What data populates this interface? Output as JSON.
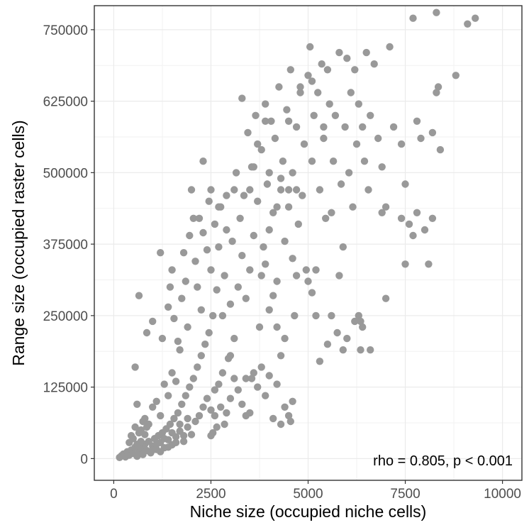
{
  "chart_data": {
    "type": "scatter",
    "xlabel": "Niche size (occupied niche cells)",
    "ylabel": "Range size (occupied raster cells)",
    "xlim": [
      -500,
      10500
    ],
    "ylim": [
      -38000,
      792000
    ],
    "x_ticks": [
      0,
      2500,
      5000,
      7500,
      10000
    ],
    "y_ticks": [
      0,
      125000,
      250000,
      375000,
      500000,
      625000,
      750000
    ],
    "x_tick_labels": [
      "0",
      "2500",
      "5000",
      "7500",
      "10000"
    ],
    "y_tick_labels": [
      "0",
      "125000",
      "250000",
      "375000",
      "500000",
      "625000",
      "750000"
    ],
    "grid": true,
    "point_color": "#999999",
    "annotation": "rho = 0.805, p < 0.001",
    "points": [
      [
        150,
        2000
      ],
      [
        200,
        5000
      ],
      [
        250,
        8000
      ],
      [
        300,
        3000
      ],
      [
        350,
        12000
      ],
      [
        400,
        6000
      ],
      [
        450,
        15000
      ],
      [
        500,
        9000
      ],
      [
        550,
        20000
      ],
      [
        600,
        4000
      ],
      [
        650,
        11000
      ],
      [
        700,
        18000
      ],
      [
        750,
        7000
      ],
      [
        800,
        25000
      ],
      [
        850,
        14000
      ],
      [
        900,
        30000
      ],
      [
        950,
        10000
      ],
      [
        1000,
        22000
      ],
      [
        1050,
        35000
      ],
      [
        1100,
        16000
      ],
      [
        1150,
        40000
      ],
      [
        1200,
        28000
      ],
      [
        1250,
        45000
      ],
      [
        1300,
        19000
      ],
      [
        1350,
        52000
      ],
      [
        1400,
        33000
      ],
      [
        1450,
        60000
      ],
      [
        1500,
        24000
      ],
      [
        1550,
        70000
      ],
      [
        1600,
        38000
      ],
      [
        1650,
        80000
      ],
      [
        1700,
        48000
      ],
      [
        1750,
        95000
      ],
      [
        1800,
        30000
      ],
      [
        1850,
        110000
      ],
      [
        1900,
        55000
      ],
      [
        1950,
        125000
      ],
      [
        2000,
        42000
      ],
      [
        2050,
        140000
      ],
      [
        2100,
        65000
      ],
      [
        2150,
        160000
      ],
      [
        2200,
        75000
      ],
      [
        2250,
        180000
      ],
      [
        2300,
        90000
      ],
      [
        2350,
        200000
      ],
      [
        2400,
        105000
      ],
      [
        2450,
        220000
      ],
      [
        2500,
        85000
      ],
      [
        2550,
        250000
      ],
      [
        2600,
        120000
      ],
      [
        700,
        50000
      ],
      [
        800,
        70000
      ],
      [
        900,
        60000
      ],
      [
        1000,
        90000
      ],
      [
        1100,
        100000
      ],
      [
        1200,
        75000
      ],
      [
        1300,
        130000
      ],
      [
        1400,
        110000
      ],
      [
        1500,
        150000
      ],
      [
        1600,
        135000
      ],
      [
        600,
        95000
      ],
      [
        550,
        160000
      ],
      [
        650,
        285000
      ],
      [
        850,
        220000
      ],
      [
        1000,
        240000
      ],
      [
        1200,
        360000
      ],
      [
        1250,
        210000
      ],
      [
        1400,
        265000
      ],
      [
        1450,
        300000
      ],
      [
        1500,
        330000
      ],
      [
        1550,
        245000
      ],
      [
        1650,
        205000
      ],
      [
        1700,
        190000
      ],
      [
        1750,
        280000
      ],
      [
        1800,
        360000
      ],
      [
        1850,
        310000
      ],
      [
        1900,
        230000
      ],
      [
        1950,
        390000
      ],
      [
        2000,
        470000
      ],
      [
        2050,
        420000
      ],
      [
        2100,
        345000
      ],
      [
        2150,
        300000
      ],
      [
        2200,
        420000
      ],
      [
        2250,
        260000
      ],
      [
        2300,
        395000
      ],
      [
        2400,
        365000
      ],
      [
        2450,
        450000
      ],
      [
        2500,
        330000
      ],
      [
        2600,
        410000
      ],
      [
        2650,
        295000
      ],
      [
        2700,
        370000
      ],
      [
        2750,
        440000
      ],
      [
        2800,
        250000
      ],
      [
        2850,
        320000
      ],
      [
        2900,
        400000
      ],
      [
        2950,
        175000
      ],
      [
        3000,
        270000
      ],
      [
        3050,
        380000
      ],
      [
        3100,
        210000
      ],
      [
        3150,
        500000
      ],
      [
        3200,
        300000
      ],
      [
        3250,
        420000
      ],
      [
        3300,
        355000
      ],
      [
        3350,
        460000
      ],
      [
        3400,
        280000
      ],
      [
        3450,
        570000
      ],
      [
        3500,
        330000
      ],
      [
        3550,
        510000
      ],
      [
        3600,
        390000
      ],
      [
        3650,
        600000
      ],
      [
        3700,
        450000
      ],
      [
        3750,
        230000
      ],
      [
        3800,
        540000
      ],
      [
        3850,
        370000
      ],
      [
        3900,
        620000
      ],
      [
        3950,
        480000
      ],
      [
        4000,
        400000
      ],
      [
        4050,
        590000
      ],
      [
        4100,
        430000
      ],
      [
        4150,
        560000
      ],
      [
        4200,
        310000
      ],
      [
        4250,
        650000
      ],
      [
        4300,
        470000
      ],
      [
        4350,
        520000
      ],
      [
        4400,
        380000
      ],
      [
        4450,
        610000
      ],
      [
        4500,
        440000
      ],
      [
        4550,
        680000
      ],
      [
        4600,
        500000
      ],
      [
        4650,
        250000
      ],
      [
        4700,
        580000
      ],
      [
        4750,
        410000
      ],
      [
        4800,
        640000
      ],
      [
        4850,
        460000
      ],
      [
        4900,
        550000
      ],
      [
        4950,
        330000
      ],
      [
        5000,
        670000
      ],
      [
        5050,
        720000
      ],
      [
        5100,
        520000
      ],
      [
        5150,
        600000
      ],
      [
        5200,
        250000
      ],
      [
        5250,
        640000
      ],
      [
        5300,
        470000
      ],
      [
        5350,
        690000
      ],
      [
        5400,
        560000
      ],
      [
        5450,
        420000
      ],
      [
        5500,
        680000
      ],
      [
        5550,
        620000
      ],
      [
        5600,
        430000
      ],
      [
        5650,
        520000
      ],
      [
        5700,
        600000
      ],
      [
        5750,
        220000
      ],
      [
        5800,
        710000
      ],
      [
        5850,
        480000
      ],
      [
        5900,
        370000
      ],
      [
        5950,
        580000
      ],
      [
        6000,
        700000
      ],
      [
        6050,
        500000
      ],
      [
        6100,
        640000
      ],
      [
        6150,
        440000
      ],
      [
        6200,
        680000
      ],
      [
        6250,
        550000
      ],
      [
        6300,
        620000
      ],
      [
        6350,
        190000
      ],
      [
        6400,
        580000
      ],
      [
        6450,
        520000
      ],
      [
        6500,
        710000
      ],
      [
        6550,
        470000
      ],
      [
        6600,
        600000
      ],
      [
        6700,
        690000
      ],
      [
        6800,
        560000
      ],
      [
        6900,
        510000
      ],
      [
        7000,
        440000
      ],
      [
        7100,
        720000
      ],
      [
        7200,
        580000
      ],
      [
        7400,
        420000
      ],
      [
        7500,
        480000
      ],
      [
        7600,
        410000
      ],
      [
        7700,
        770000
      ],
      [
        7800,
        590000
      ],
      [
        7900,
        560000
      ],
      [
        8000,
        400000
      ],
      [
        8100,
        340000
      ],
      [
        8200,
        420000
      ],
      [
        8300,
        780000
      ],
      [
        8350,
        650000
      ],
      [
        8400,
        540000
      ],
      [
        8800,
        670000
      ],
      [
        9100,
        760000
      ],
      [
        9300,
        770000
      ],
      [
        3300,
        630000
      ],
      [
        3600,
        510000
      ],
      [
        3900,
        590000
      ],
      [
        4200,
        440000
      ],
      [
        4500,
        590000
      ],
      [
        4800,
        650000
      ],
      [
        5100,
        660000
      ],
      [
        5400,
        580000
      ],
      [
        6000,
        210000
      ],
      [
        6200,
        240000
      ],
      [
        6400,
        230000
      ],
      [
        6600,
        190000
      ],
      [
        7000,
        280000
      ],
      [
        7500,
        340000
      ],
      [
        7700,
        390000
      ],
      [
        7800,
        430000
      ],
      [
        8300,
        640000
      ],
      [
        8200,
        570000
      ],
      [
        7400,
        550000
      ],
      [
        6900,
        430000
      ],
      [
        3000,
        180000
      ],
      [
        3100,
        140000
      ],
      [
        3200,
        120000
      ],
      [
        3300,
        95000
      ],
      [
        3400,
        140000
      ],
      [
        3500,
        80000
      ],
      [
        3600,
        150000
      ],
      [
        3700,
        125000
      ],
      [
        3800,
        160000
      ],
      [
        3900,
        110000
      ],
      [
        4000,
        145000
      ],
      [
        4100,
        70000
      ],
      [
        4200,
        130000
      ],
      [
        4300,
        60000
      ],
      [
        4400,
        90000
      ],
      [
        4500,
        75000
      ],
      [
        4550,
        65000
      ],
      [
        4600,
        100000
      ],
      [
        3400,
        75000
      ],
      [
        3550,
        140000
      ],
      [
        2700,
        130000
      ],
      [
        2750,
        90000
      ],
      [
        2800,
        150000
      ],
      [
        2850,
        60000
      ],
      [
        2900,
        80000
      ],
      [
        3000,
        105000
      ],
      [
        2600,
        75000
      ],
      [
        2650,
        55000
      ],
      [
        2550,
        45000
      ],
      [
        2500,
        40000
      ],
      [
        1000,
        15000
      ],
      [
        1100,
        25000
      ],
      [
        1200,
        12000
      ],
      [
        1300,
        35000
      ],
      [
        1400,
        20000
      ],
      [
        1500,
        45000
      ],
      [
        1600,
        28000
      ],
      [
        1700,
        60000
      ],
      [
        1800,
        40000
      ],
      [
        1900,
        70000
      ],
      [
        400,
        28000
      ],
      [
        450,
        40000
      ],
      [
        500,
        35000
      ],
      [
        550,
        55000
      ],
      [
        600,
        25000
      ],
      [
        650,
        45000
      ],
      [
        700,
        30000
      ],
      [
        750,
        65000
      ],
      [
        800,
        42000
      ],
      [
        850,
        55000
      ],
      [
        3800,
        320000
      ],
      [
        3900,
        340000
      ],
      [
        4000,
        260000
      ],
      [
        4100,
        285000
      ],
      [
        4200,
        230000
      ],
      [
        4300,
        180000
      ],
      [
        4400,
        210000
      ],
      [
        4500,
        470000
      ],
      [
        4600,
        350000
      ],
      [
        4700,
        320000
      ],
      [
        5000,
        310000
      ],
      [
        5100,
        290000
      ],
      [
        5200,
        330000
      ],
      [
        5300,
        170000
      ],
      [
        5500,
        200000
      ],
      [
        5600,
        250000
      ],
      [
        5800,
        320000
      ],
      [
        5900,
        190000
      ],
      [
        6300,
        250000
      ],
      [
        6350,
        240000
      ],
      [
        2300,
        520000
      ],
      [
        2500,
        470000
      ],
      [
        2700,
        440000
      ],
      [
        2900,
        460000
      ],
      [
        3100,
        470000
      ],
      [
        3500,
        470000
      ],
      [
        3700,
        550000
      ],
      [
        4000,
        500000
      ],
      [
        4300,
        490000
      ],
      [
        4700,
        470000
      ]
    ]
  }
}
